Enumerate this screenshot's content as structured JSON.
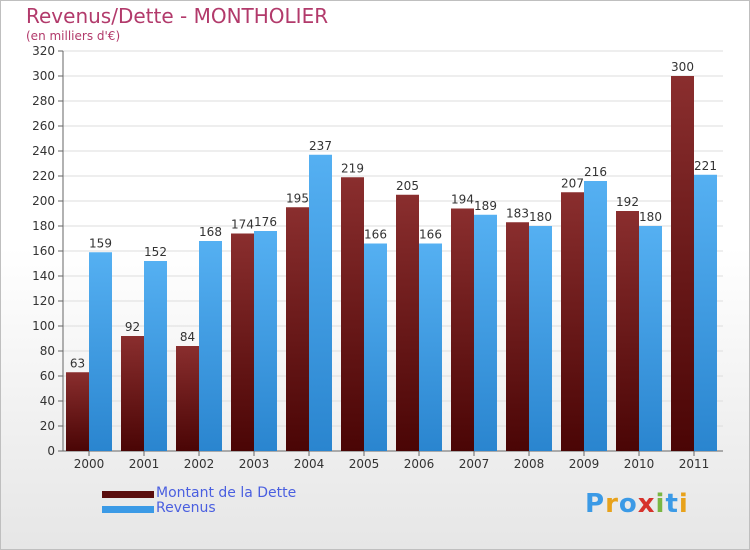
{
  "title": "Revenus/Dette - MONTHOLIER",
  "subtitle": "(en milliers d'€)",
  "chart_data": {
    "type": "bar",
    "title": "Revenus/Dette - MONTHOLIER",
    "subtitle": "(en milliers d'€)",
    "categories": [
      "2000",
      "2001",
      "2002",
      "2003",
      "2004",
      "2005",
      "2006",
      "2007",
      "2008",
      "2009",
      "2010",
      "2011"
    ],
    "series": [
      {
        "name": "Montant de la Dette",
        "color": "#7a1a1a",
        "values": [
          63,
          92,
          84,
          174,
          195,
          219,
          205,
          194,
          183,
          207,
          192,
          300
        ]
      },
      {
        "name": "Revenus",
        "color": "#3b9ae6",
        "values": [
          159,
          152,
          168,
          176,
          237,
          166,
          166,
          189,
          180,
          216,
          180,
          221
        ]
      }
    ],
    "yticks": [
      0,
      20,
      40,
      60,
      80,
      100,
      120,
      140,
      160,
      180,
      200,
      220,
      240,
      260,
      280,
      300,
      320
    ],
    "ylim": [
      0,
      320
    ],
    "grid": true,
    "legend_position": "bottom-left"
  },
  "legend": {
    "items": [
      {
        "label": "Montant de la Dette",
        "color": "#5a0d0d"
      },
      {
        "label": "Revenus",
        "color": "#3b9ae6"
      }
    ]
  },
  "logo": {
    "letters": [
      "P",
      "r",
      "o",
      "x",
      "i",
      "t",
      "i"
    ],
    "colors": [
      "#3b9ae6",
      "#e8a21b",
      "#3b9ae6",
      "#d6322c",
      "#7ab642",
      "#3b9ae6",
      "#e8a21b"
    ]
  }
}
